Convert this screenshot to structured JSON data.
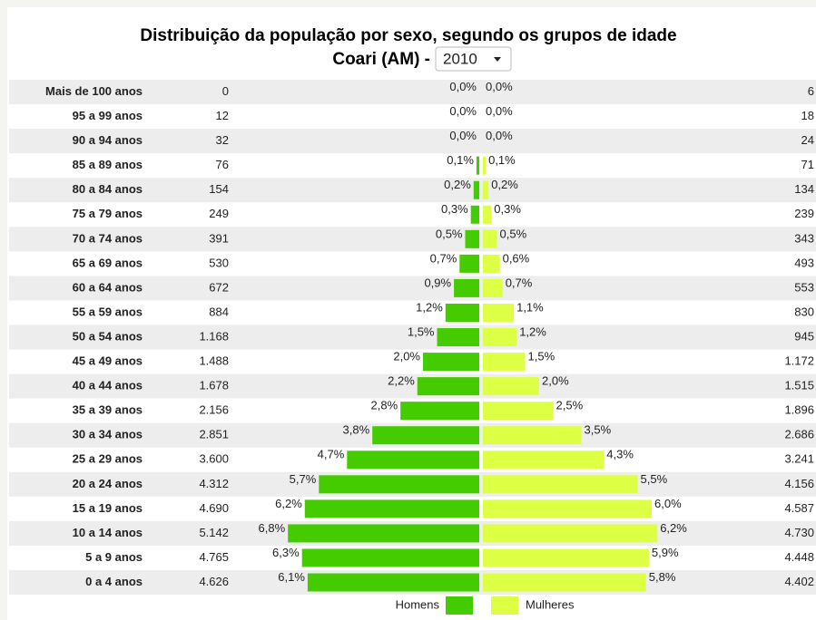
{
  "chart_data": {
    "type": "pyramid",
    "title": "Distribuição da população por sexo, segundo os grupos de idade",
    "subtitle": "Coari (AM) -",
    "year": "2010",
    "categories": [
      "Mais de 100 anos",
      "95 a 99 anos",
      "90 a 94 anos",
      "85 a 89 anos",
      "80 a 84 anos",
      "75 a 79 anos",
      "70 a 74 anos",
      "65 a 69 anos",
      "60 a 64 anos",
      "55 a 59 anos",
      "50 a 54 anos",
      "45 a 49 anos",
      "40 a 44 anos",
      "35 a 39 anos",
      "30 a 34 anos",
      "25 a 29 anos",
      "20 a 24 anos",
      "15 a 19 anos",
      "10 a 14 anos",
      "5 a 9 anos",
      "0 a 4 anos"
    ],
    "series": [
      {
        "name": "Homens",
        "color": "#44cc00",
        "side": "left",
        "values": [
          0.0,
          0.0,
          0.0,
          0.1,
          0.2,
          0.3,
          0.5,
          0.7,
          0.9,
          1.2,
          1.5,
          2.0,
          2.2,
          2.8,
          3.8,
          4.7,
          5.7,
          6.2,
          6.8,
          6.3,
          6.1
        ],
        "value_labels": [
          "0,0%",
          "0,0%",
          "0,0%",
          "0,1%",
          "0,2%",
          "0,3%",
          "0,5%",
          "0,7%",
          "0,9%",
          "1,2%",
          "1,5%",
          "2,0%",
          "2,2%",
          "2,8%",
          "3,8%",
          "4,7%",
          "5,7%",
          "6,2%",
          "6,8%",
          "6,3%",
          "6,1%"
        ],
        "counts": [
          0,
          12,
          32,
          76,
          154,
          249,
          391,
          530,
          672,
          884,
          1168,
          1488,
          1678,
          2156,
          2851,
          3600,
          4312,
          4690,
          5142,
          4765,
          4626
        ],
        "count_labels": [
          "0",
          "12",
          "32",
          "76",
          "154",
          "249",
          "391",
          "530",
          "672",
          "884",
          "1.168",
          "1.488",
          "1.678",
          "2.156",
          "2.851",
          "3.600",
          "4.312",
          "4.690",
          "5.142",
          "4.765",
          "4.626"
        ]
      },
      {
        "name": "Mulheres",
        "color": "#ddff44",
        "side": "right",
        "values": [
          0.0,
          0.0,
          0.0,
          0.1,
          0.2,
          0.3,
          0.5,
          0.6,
          0.7,
          1.1,
          1.2,
          1.5,
          2.0,
          2.5,
          3.5,
          4.3,
          5.5,
          6.0,
          6.2,
          5.9,
          5.8
        ],
        "value_labels": [
          "0,0%",
          "0,0%",
          "0,0%",
          "0,1%",
          "0,2%",
          "0,3%",
          "0,5%",
          "0,6%",
          "0,7%",
          "1,1%",
          "1,2%",
          "1,5%",
          "2,0%",
          "2,5%",
          "3,5%",
          "4,3%",
          "5,5%",
          "6,0%",
          "6,2%",
          "5,9%",
          "5,8%"
        ],
        "counts": [
          6,
          18,
          24,
          71,
          134,
          239,
          343,
          493,
          553,
          830,
          945,
          1172,
          1515,
          1896,
          2686,
          3241,
          4156,
          4587,
          4730,
          4448,
          4402
        ],
        "count_labels": [
          "6",
          "18",
          "24",
          "71",
          "134",
          "239",
          "343",
          "493",
          "553",
          "830",
          "945",
          "1.172",
          "1.515",
          "1.896",
          "2.686",
          "3.241",
          "4.156",
          "4.587",
          "4.730",
          "4.448",
          "4.402"
        ]
      }
    ]
  }
}
